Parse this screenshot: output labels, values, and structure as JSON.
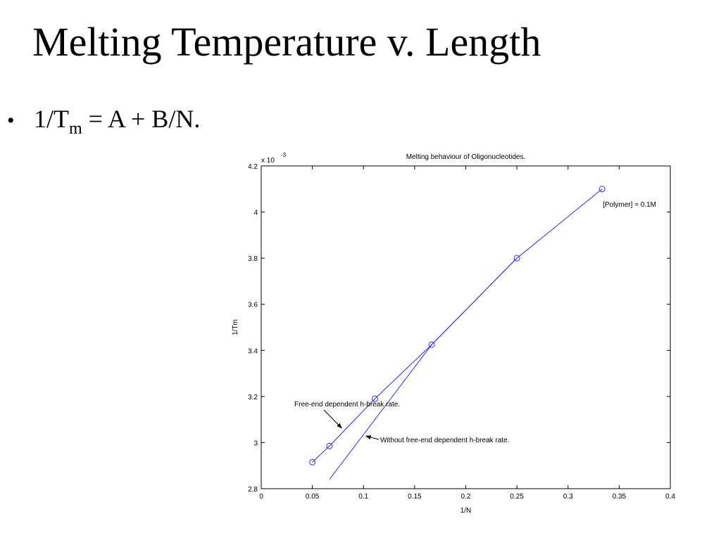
{
  "slide": {
    "title": "Melting Temperature v. Length",
    "bullet": {
      "symbol": "•",
      "part1": "1/T",
      "subscript": "m",
      "part2": " = A + B/N."
    }
  },
  "chart_data": {
    "type": "line",
    "title": "Melting behaviour of Oligonucleotides.",
    "xlabel": "1/N",
    "ylabel": "1/Tm",
    "y_multiplier": "x 10",
    "y_multiplier_exponent": "-3",
    "xlim": [
      0,
      0.4
    ],
    "ylim": [
      2.8,
      4.2
    ],
    "xticks": [
      0,
      0.05,
      0.1,
      0.15,
      0.2,
      0.25,
      0.3,
      0.35,
      0.4
    ],
    "xtick_labels": [
      "0",
      "0.05",
      "0.1",
      "0.15",
      "0.2",
      "0.25",
      "0.3",
      "0.35",
      "0.4"
    ],
    "yticks": [
      2.8,
      3.0,
      3.2,
      3.4,
      3.6,
      3.8,
      4.0,
      4.2
    ],
    "ytick_labels": [
      "2.8",
      "3",
      "3.2",
      "3.4",
      "3.6",
      "3.8",
      "4",
      "4.2"
    ],
    "grid": false,
    "line_color": "#2b2bff",
    "series": [
      {
        "marker": "circle",
        "x": [
          0.05,
          0.0667,
          0.1111,
          0.1667,
          0.25,
          0.3333
        ],
        "y": [
          2.915,
          2.985,
          3.19,
          3.425,
          3.8,
          4.1
        ]
      },
      {
        "marker": "none",
        "x": [
          0.0667,
          0.1667,
          0.25
        ],
        "y": [
          2.84,
          3.425,
          3.8
        ]
      }
    ],
    "annotations": [
      {
        "text": "[Polymer] = 0.1M"
      },
      {
        "text": "Free-end dependent h-break rate.",
        "arrow_to": [
          0.08,
          3.06
        ]
      },
      {
        "text": "Without free-end dependent h-break rate.",
        "arrow_to": [
          0.101,
          3.025
        ]
      }
    ]
  }
}
